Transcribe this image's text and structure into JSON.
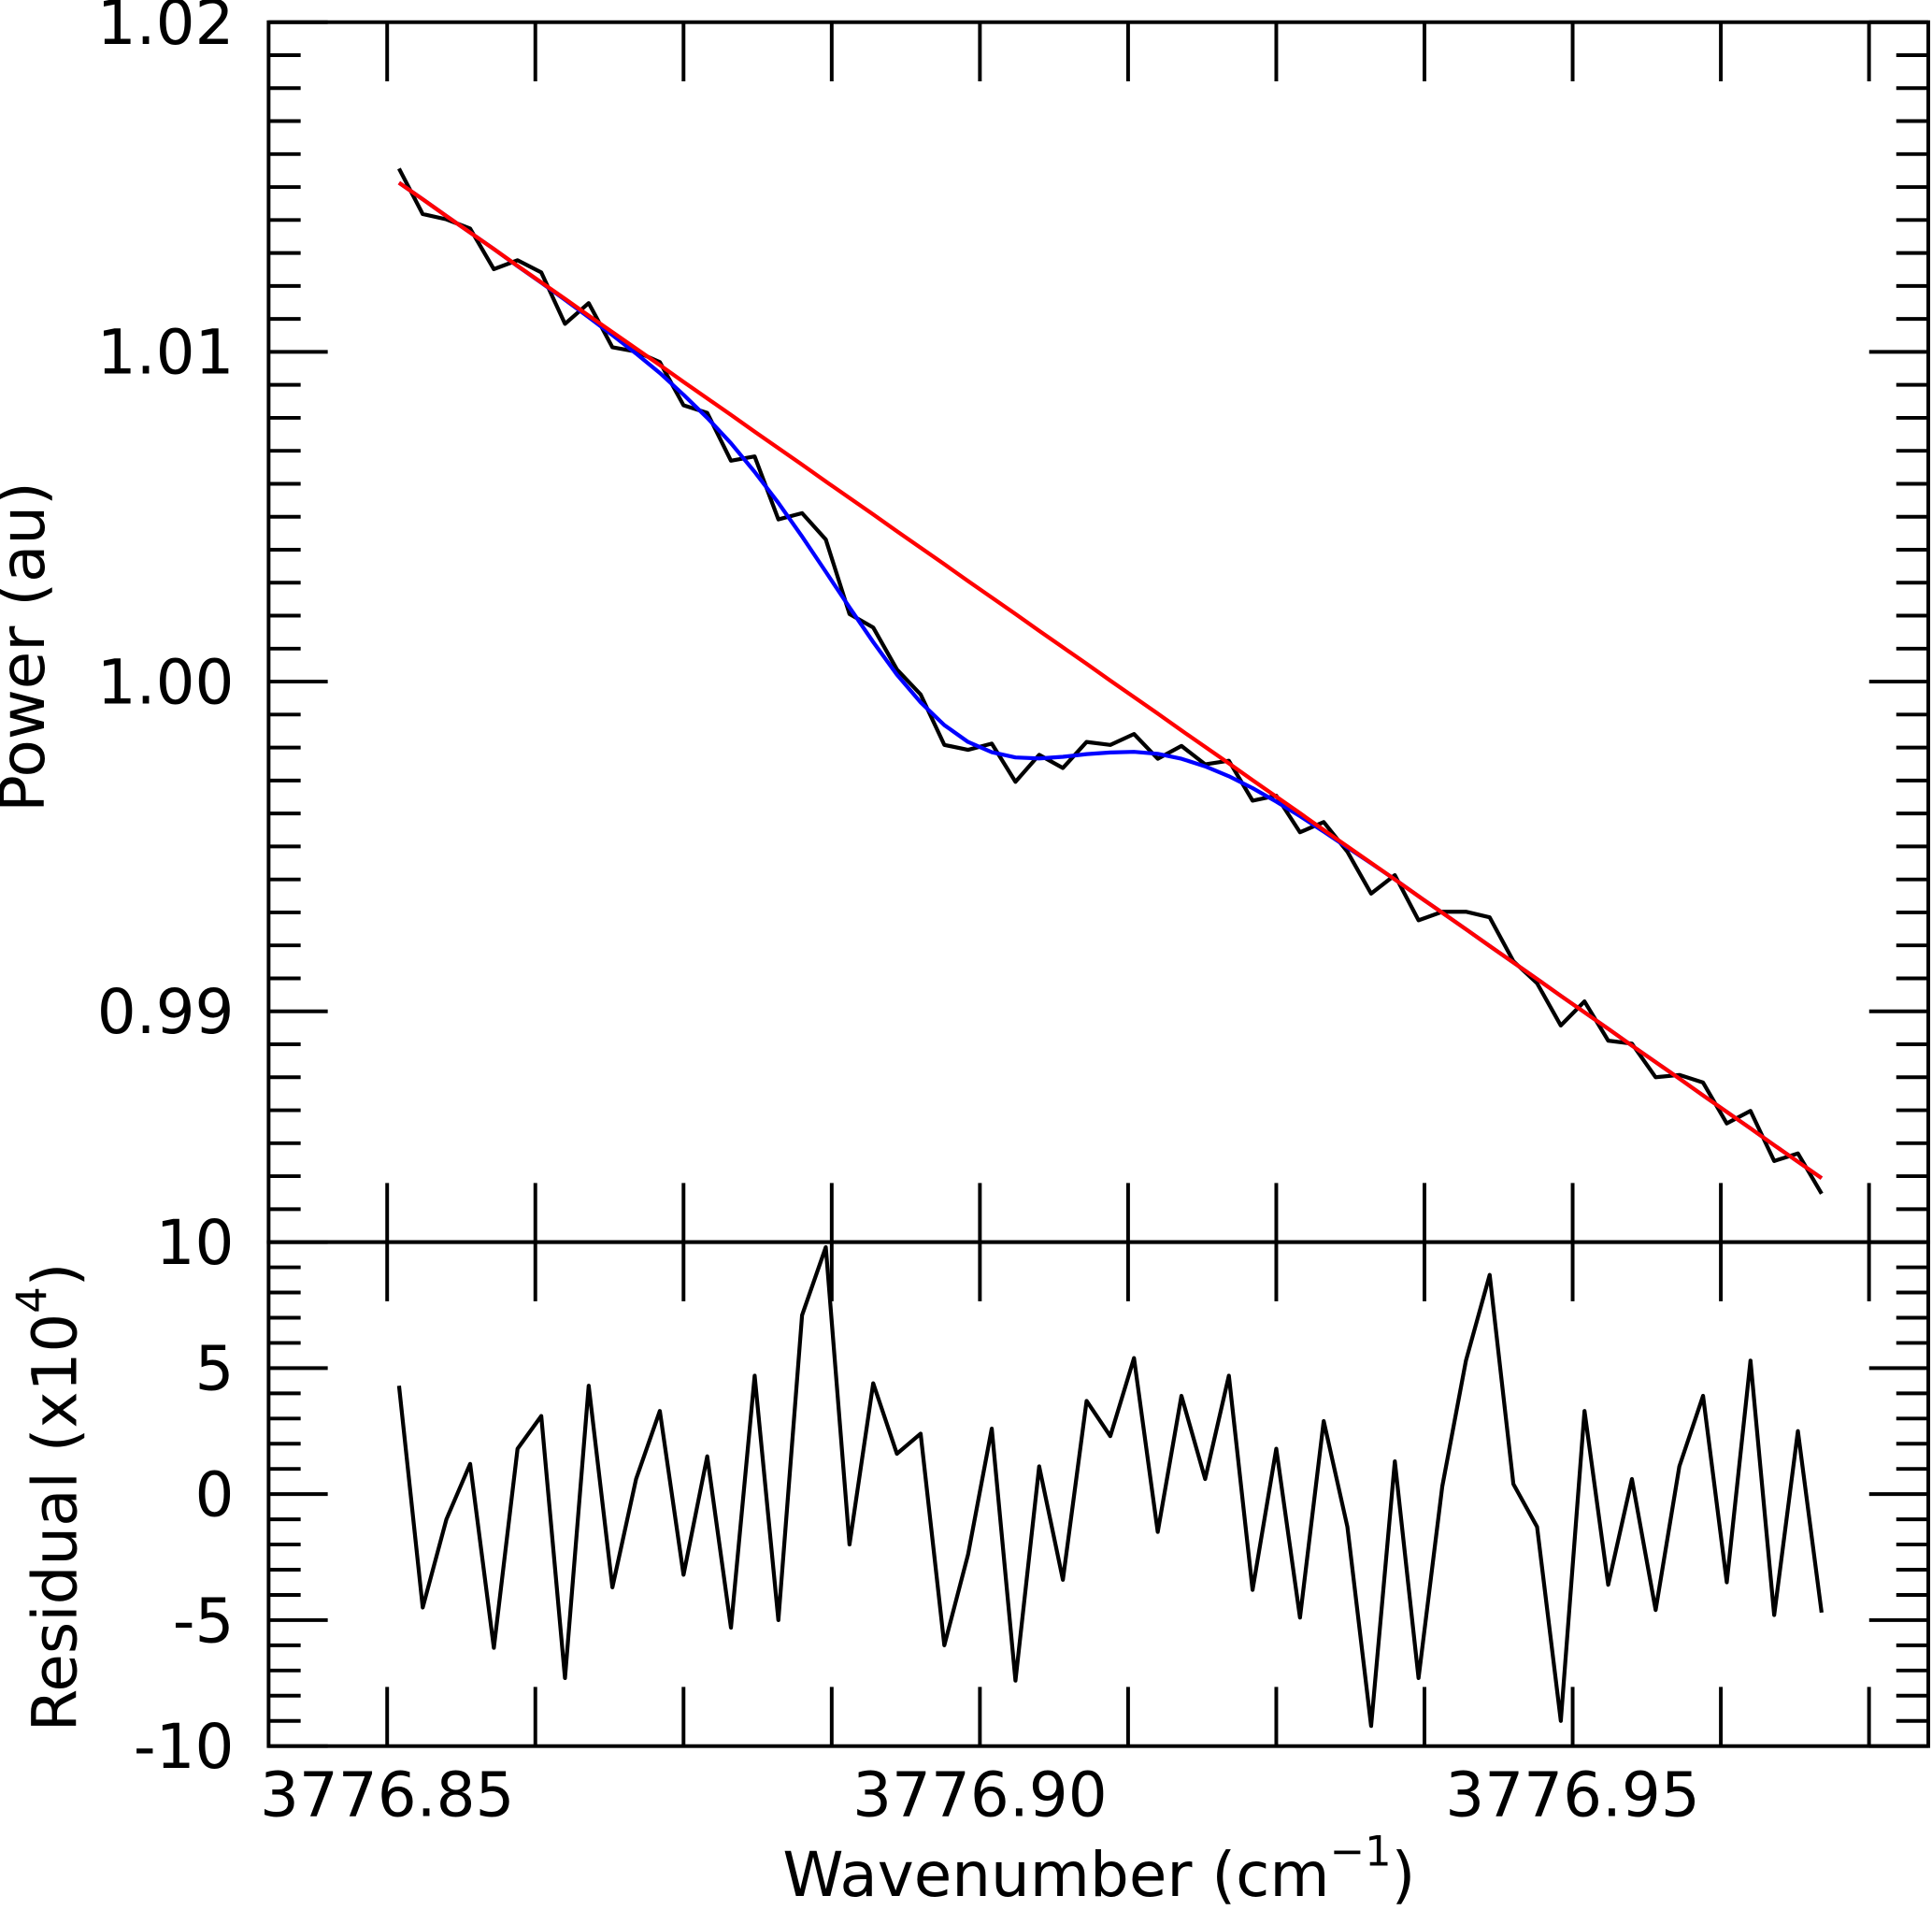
{
  "chart_data": [
    {
      "type": "line",
      "ylabel": "Power (au)",
      "ylim": [
        0.983,
        1.02
      ],
      "yticks": [
        0.99,
        {
          "value": 1,
          "label": "1.00"
        },
        1.01,
        1.02
      ],
      "yticks_minor": [
        0.984,
        0.985,
        0.986,
        0.987,
        0.988,
        0.989,
        0.991,
        0.992,
        0.993,
        0.994,
        0.995,
        0.996,
        0.997,
        0.998,
        0.999,
        1.001,
        1.002,
        1.003,
        1.004,
        1.005,
        1.006,
        1.007,
        1.008,
        1.009,
        1.011,
        1.012,
        1.013,
        1.014,
        1.015,
        1.016,
        1.017,
        1.018,
        1.019
      ],
      "x": [
        3776.851,
        3776.853,
        3776.855,
        3776.857,
        3776.859,
        3776.861,
        3776.863,
        3776.865,
        3776.867,
        3776.869,
        3776.871,
        3776.873,
        3776.875,
        3776.877,
        3776.879,
        3776.881,
        3776.883,
        3776.885,
        3776.887,
        3776.889,
        3776.891,
        3776.893,
        3776.895,
        3776.897,
        3776.899,
        3776.901,
        3776.903,
        3776.905,
        3776.907,
        3776.909,
        3776.911,
        3776.913,
        3776.915,
        3776.917,
        3776.919,
        3776.921,
        3776.923,
        3776.925,
        3776.927,
        3776.929,
        3776.931,
        3776.933,
        3776.935,
        3776.937,
        3776.939,
        3776.941,
        3776.943,
        3776.945,
        3776.947,
        3776.949,
        3776.951,
        3776.953,
        3776.955,
        3776.957,
        3776.959,
        3776.961,
        3776.963,
        3776.965,
        3776.967,
        3776.969,
        3776.971
      ],
      "series": [
        {
          "color": "#000000",
          "values": [
            1.01556,
            1.01418,
            1.01402,
            1.01374,
            1.01251,
            1.01278,
            1.01241,
            1.01085,
            1.01148,
            1.01014,
            1.01001,
            1.00969,
            1.00838,
            1.00815,
            1.0067,
            1.00683,
            1.00492,
            1.00511,
            1.00431,
            1.00205,
            1.00164,
            1.00037,
            0.99961,
            0.99808,
            0.99793,
            0.99812,
            0.99696,
            0.99778,
            0.99738,
            0.99817,
            0.99808,
            0.99841,
            0.99766,
            0.99805,
            0.99749,
            0.9976,
            0.99639,
            0.99654,
            0.99543,
            0.99574,
            0.99484,
            0.99357,
            0.99413,
            0.99276,
            0.99302,
            0.99302,
            0.99285,
            0.99152,
            0.99085,
            0.98957,
            0.9903,
            0.98911,
            0.98902,
            0.988,
            0.98807,
            0.98784,
            0.9866,
            0.98698,
            0.98546,
            0.98569,
            0.98447
          ]
        },
        {
          "color": "#0000ff",
          "values": [
            1.01513,
            1.01463,
            1.01412,
            1.01362,
            1.01312,
            1.0126,
            1.0121,
            1.01158,
            1.01105,
            1.01051,
            1.00995,
            1.00936,
            1.0087,
            1.008,
            1.00723,
            1.00636,
            1.00542,
            1.0044,
            1.00333,
            1.00225,
            1.0012,
            1.00021,
            0.99937,
            0.99868,
            0.99817,
            0.99786,
            0.9977,
            0.99767,
            0.99772,
            0.9978,
            0.99785,
            0.99787,
            0.99781,
            0.99766,
            0.99743,
            0.99713,
            0.99677,
            0.99636,
            0.99592,
            0.99545,
            0.99497,
            0.99449,
            0.994,
            0.99349,
            0.99299,
            0.99249,
            0.99198,
            0.99148,
            0.99098,
            0.99047,
            0.98997,
            0.98947,
            0.98896,
            0.98846,
            0.98796,
            0.98745,
            0.98695,
            0.98645,
            0.98594,
            0.98544,
            0.98494
          ]
        },
        {
          "color": "#ff0000",
          "values": [
            1.01513,
            1.01463,
            1.01412,
            1.01362,
            1.01312,
            1.01261,
            1.01211,
            1.01161,
            1.0111,
            1.0106,
            1.0101,
            1.0096,
            1.00909,
            1.00859,
            1.00809,
            1.00758,
            1.00708,
            1.00658,
            1.00607,
            1.00557,
            1.00507,
            1.00456,
            1.00406,
            1.00356,
            1.00305,
            1.00255,
            1.00205,
            1.00154,
            1.00104,
            1.00054,
            1.00003,
            0.99953,
            0.99903,
            0.99852,
            0.99802,
            0.99752,
            0.99701,
            0.99651,
            0.99601,
            0.9955,
            0.995,
            0.9945,
            0.994,
            0.99349,
            0.99299,
            0.99249,
            0.99198,
            0.99148,
            0.99098,
            0.99047,
            0.98997,
            0.98947,
            0.98896,
            0.98846,
            0.98796,
            0.98745,
            0.98695,
            0.98645,
            0.98594,
            0.98544,
            0.98494
          ]
        }
      ]
    },
    {
      "type": "line",
      "xlabel": {
        "text": "Wavenumber (cm",
        "sup": "−1",
        "end": ")"
      },
      "ylabel": {
        "text": "Residual (x10",
        "sup": "4",
        "end": ")"
      },
      "xlim": [
        3776.84,
        3776.98
      ],
      "xticks": [
        3776.85,
        {
          "value": 3776.9,
          "label": "3776.90"
        },
        3776.95
      ],
      "xticks_minor": [
        3776.8625,
        3776.875,
        3776.8875,
        3776.9125,
        3776.925,
        3776.9375,
        3776.9625,
        3776.975
      ],
      "ylim": [
        -10,
        10
      ],
      "yticks": [
        -10,
        -5,
        0,
        5,
        10
      ],
      "yticks_minor": [
        -9,
        -8,
        -7,
        -6,
        -4,
        -3,
        -2,
        -1,
        1,
        2,
        3,
        4,
        6,
        7,
        8,
        9
      ],
      "x": [
        3776.851,
        3776.853,
        3776.855,
        3776.857,
        3776.859,
        3776.861,
        3776.863,
        3776.865,
        3776.867,
        3776.869,
        3776.871,
        3776.873,
        3776.875,
        3776.877,
        3776.879,
        3776.881,
        3776.883,
        3776.885,
        3776.887,
        3776.889,
        3776.891,
        3776.893,
        3776.895,
        3776.897,
        3776.899,
        3776.901,
        3776.903,
        3776.905,
        3776.907,
        3776.909,
        3776.911,
        3776.913,
        3776.915,
        3776.917,
        3776.919,
        3776.921,
        3776.923,
        3776.925,
        3776.927,
        3776.929,
        3776.931,
        3776.933,
        3776.935,
        3776.937,
        3776.939,
        3776.941,
        3776.943,
        3776.945,
        3776.947,
        3776.949,
        3776.951,
        3776.953,
        3776.955,
        3776.957,
        3776.959,
        3776.961,
        3776.963,
        3776.965,
        3776.967,
        3776.969,
        3776.971
      ],
      "series": [
        {
          "color": "#000000",
          "values": [
            4.3,
            -4.5,
            -1.0,
            1.2,
            -6.1,
            1.8,
            3.1,
            -7.3,
            4.3,
            -3.7,
            0.6,
            3.3,
            -3.2,
            1.5,
            -5.3,
            4.7,
            -5.0,
            7.1,
            9.8,
            -2.0,
            4.4,
            1.6,
            2.4,
            -6.0,
            -2.4,
            2.6,
            -7.4,
            1.1,
            -3.4,
            3.7,
            2.3,
            5.4,
            -1.5,
            3.9,
            0.6,
            4.7,
            -3.8,
            1.8,
            -4.9,
            2.9,
            -1.3,
            -9.2,
            1.3,
            -7.3,
            0.3,
            5.3,
            8.7,
            0.4,
            -1.3,
            -9.0,
            3.3,
            -3.6,
            0.6,
            -4.6,
            1.1,
            3.9,
            -3.5,
            5.3,
            -4.8,
            2.5,
            -4.7
          ]
        }
      ]
    }
  ]
}
